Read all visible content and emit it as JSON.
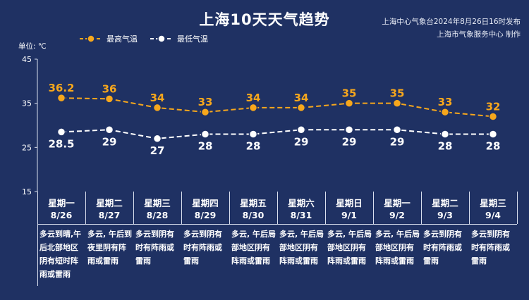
{
  "title": "上海10天天气趋势",
  "publisher_line1": "上海中心气象台2024年8月26日16时发布",
  "publisher_line2": "上海市气象服务中心 制作",
  "unit_label": "单位: ℃",
  "colors": {
    "background": "#1f3163",
    "high": "#f7a71c",
    "low": "#ffffff"
  },
  "chart_data": {
    "type": "line",
    "categories": [
      "8/26",
      "8/27",
      "8/28",
      "8/29",
      "8/30",
      "8/31",
      "9/1",
      "9/2",
      "9/3",
      "9/4"
    ],
    "series": [
      {
        "name": "最高气温",
        "values": [
          36.2,
          36,
          34,
          33,
          34,
          34,
          35,
          35,
          33,
          32
        ],
        "labels": [
          "36.2",
          "36",
          "34",
          "33",
          "34",
          "34",
          "35",
          "35",
          "33",
          "32"
        ]
      },
      {
        "name": "最低气温",
        "values": [
          28.5,
          29,
          27,
          28,
          28,
          29,
          29,
          29,
          28,
          28
        ],
        "labels": [
          "28.5",
          "29",
          "27",
          "28",
          "28",
          "29",
          "29",
          "29",
          "28",
          "28"
        ]
      }
    ],
    "ylim": [
      15,
      45
    ],
    "yticks": [
      "15",
      "25",
      "35",
      "45"
    ],
    "legend_position": "top-left",
    "grid": false
  },
  "days": [
    {
      "weekday": "星期一",
      "date": "8/26",
      "desc": "多云到晴,午后北部地区阴有短时阵雨或雷雨"
    },
    {
      "weekday": "星期二",
      "date": "8/27",
      "desc": "多云, 午后到夜里阴有阵雨或雷雨"
    },
    {
      "weekday": "星期三",
      "date": "8/28",
      "desc": "多云到阴有时有阵雨或雷雨"
    },
    {
      "weekday": "星期四",
      "date": "8/29",
      "desc": "多云到阴有时有阵雨或雷雨"
    },
    {
      "weekday": "星期五",
      "date": "8/30",
      "desc": "多云, 午后局部地区阴有阵雨或雷雨"
    },
    {
      "weekday": "星期六",
      "date": "8/31",
      "desc": "多云, 午后局部地区阴有阵雨或雷雨"
    },
    {
      "weekday": "星期日",
      "date": "9/1",
      "desc": "多云, 午后局部地区阴有阵雨或雷雨"
    },
    {
      "weekday": "星期一",
      "date": "9/2",
      "desc": "多云, 午后局部地区阴有阵雨或雷雨"
    },
    {
      "weekday": "星期二",
      "date": "9/3",
      "desc": "多云到阴有时有阵雨或雷雨"
    },
    {
      "weekday": "星期三",
      "date": "9/4",
      "desc": "多云到阴有时有阵雨或雷雨"
    }
  ]
}
